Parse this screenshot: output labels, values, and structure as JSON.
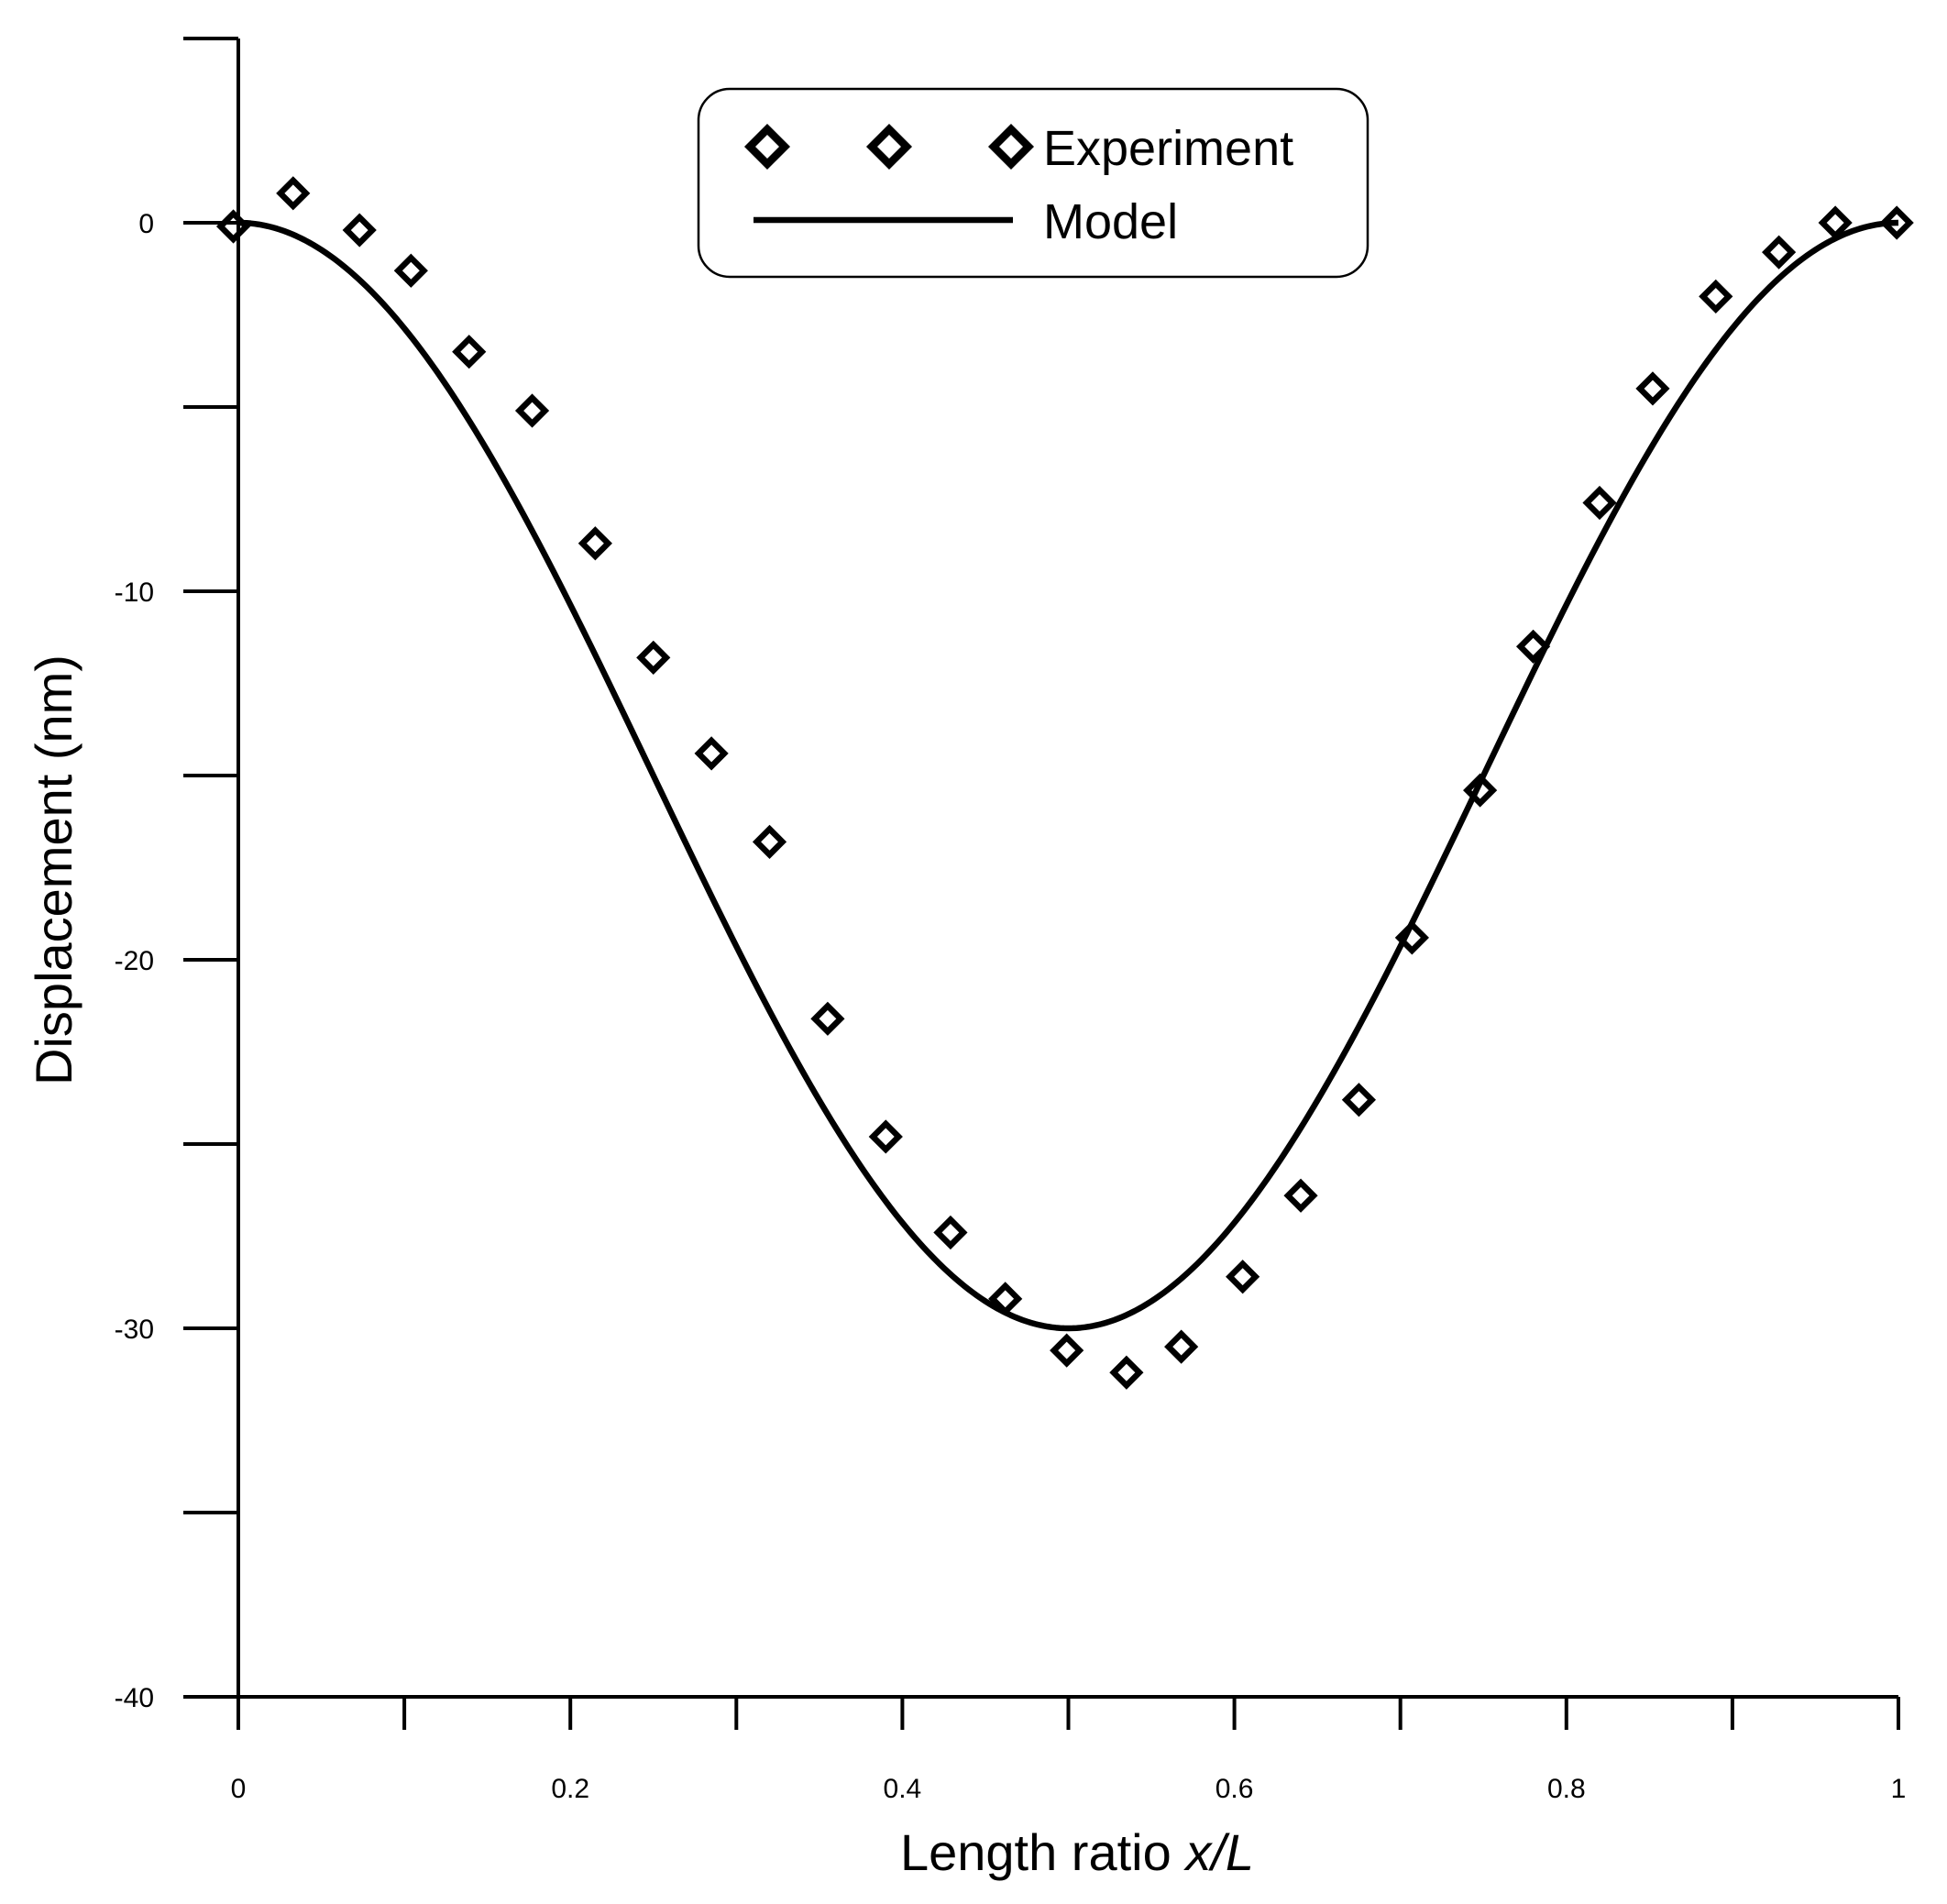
{
  "chart_data": {
    "type": "scatter",
    "title": "",
    "xlabel": {
      "main": "Length ratio ",
      "italic": "x/L"
    },
    "ylabel": "Displacement (nm)",
    "xlim": [
      0,
      1
    ],
    "ylim": [
      -40,
      5
    ],
    "x_major_ticks": [
      0,
      0.2,
      0.4,
      0.6,
      0.8,
      1
    ],
    "x_tick_labels": [
      "0",
      "0.2",
      "0.4",
      "0.6",
      "0.8",
      "1"
    ],
    "x_minor_ticks": [
      0.1,
      0.3,
      0.5,
      0.7,
      0.9
    ],
    "y_major_ticks": [
      0,
      -10,
      -20,
      -30,
      -40
    ],
    "y_tick_labels": [
      "0",
      "-10",
      "-20",
      "-30",
      "-40"
    ],
    "y_minor_ticks": [
      5,
      -5,
      -15,
      -25,
      -35
    ],
    "grid": false,
    "legend": {
      "position": "top-center",
      "entries": [
        {
          "label": "Experiment",
          "marker": "diamond"
        },
        {
          "label": "Model",
          "marker": "line"
        }
      ]
    },
    "series": [
      {
        "name": "Experiment",
        "style": "open-diamond",
        "x": [
          -0.003,
          0.033,
          0.073,
          0.104,
          0.139,
          0.177,
          0.215,
          0.25,
          0.285,
          0.32,
          0.355,
          0.39,
          0.429,
          0.462,
          0.499,
          0.535,
          0.568,
          0.605,
          0.64,
          0.675,
          0.707,
          0.748,
          0.78,
          0.82,
          0.852,
          0.89,
          0.928,
          0.962,
          0.999
        ],
        "y": [
          -0.1,
          0.8,
          -0.2,
          -1.3,
          -3.5,
          -5.1,
          -8.7,
          -11.8,
          -14.4,
          -16.8,
          -21.6,
          -24.8,
          -27.4,
          -29.2,
          -30.6,
          -31.2,
          -30.5,
          -28.6,
          -26.4,
          -23.8,
          -19.4,
          -15.4,
          -11.5,
          -7.6,
          -4.5,
          -2.0,
          -0.8,
          0.0,
          0.0
        ]
      },
      {
        "name": "Model",
        "style": "solid-line",
        "function": "y = -15 * (1 - cos(2*pi*x))",
        "amplitude_min": -30
      }
    ]
  }
}
